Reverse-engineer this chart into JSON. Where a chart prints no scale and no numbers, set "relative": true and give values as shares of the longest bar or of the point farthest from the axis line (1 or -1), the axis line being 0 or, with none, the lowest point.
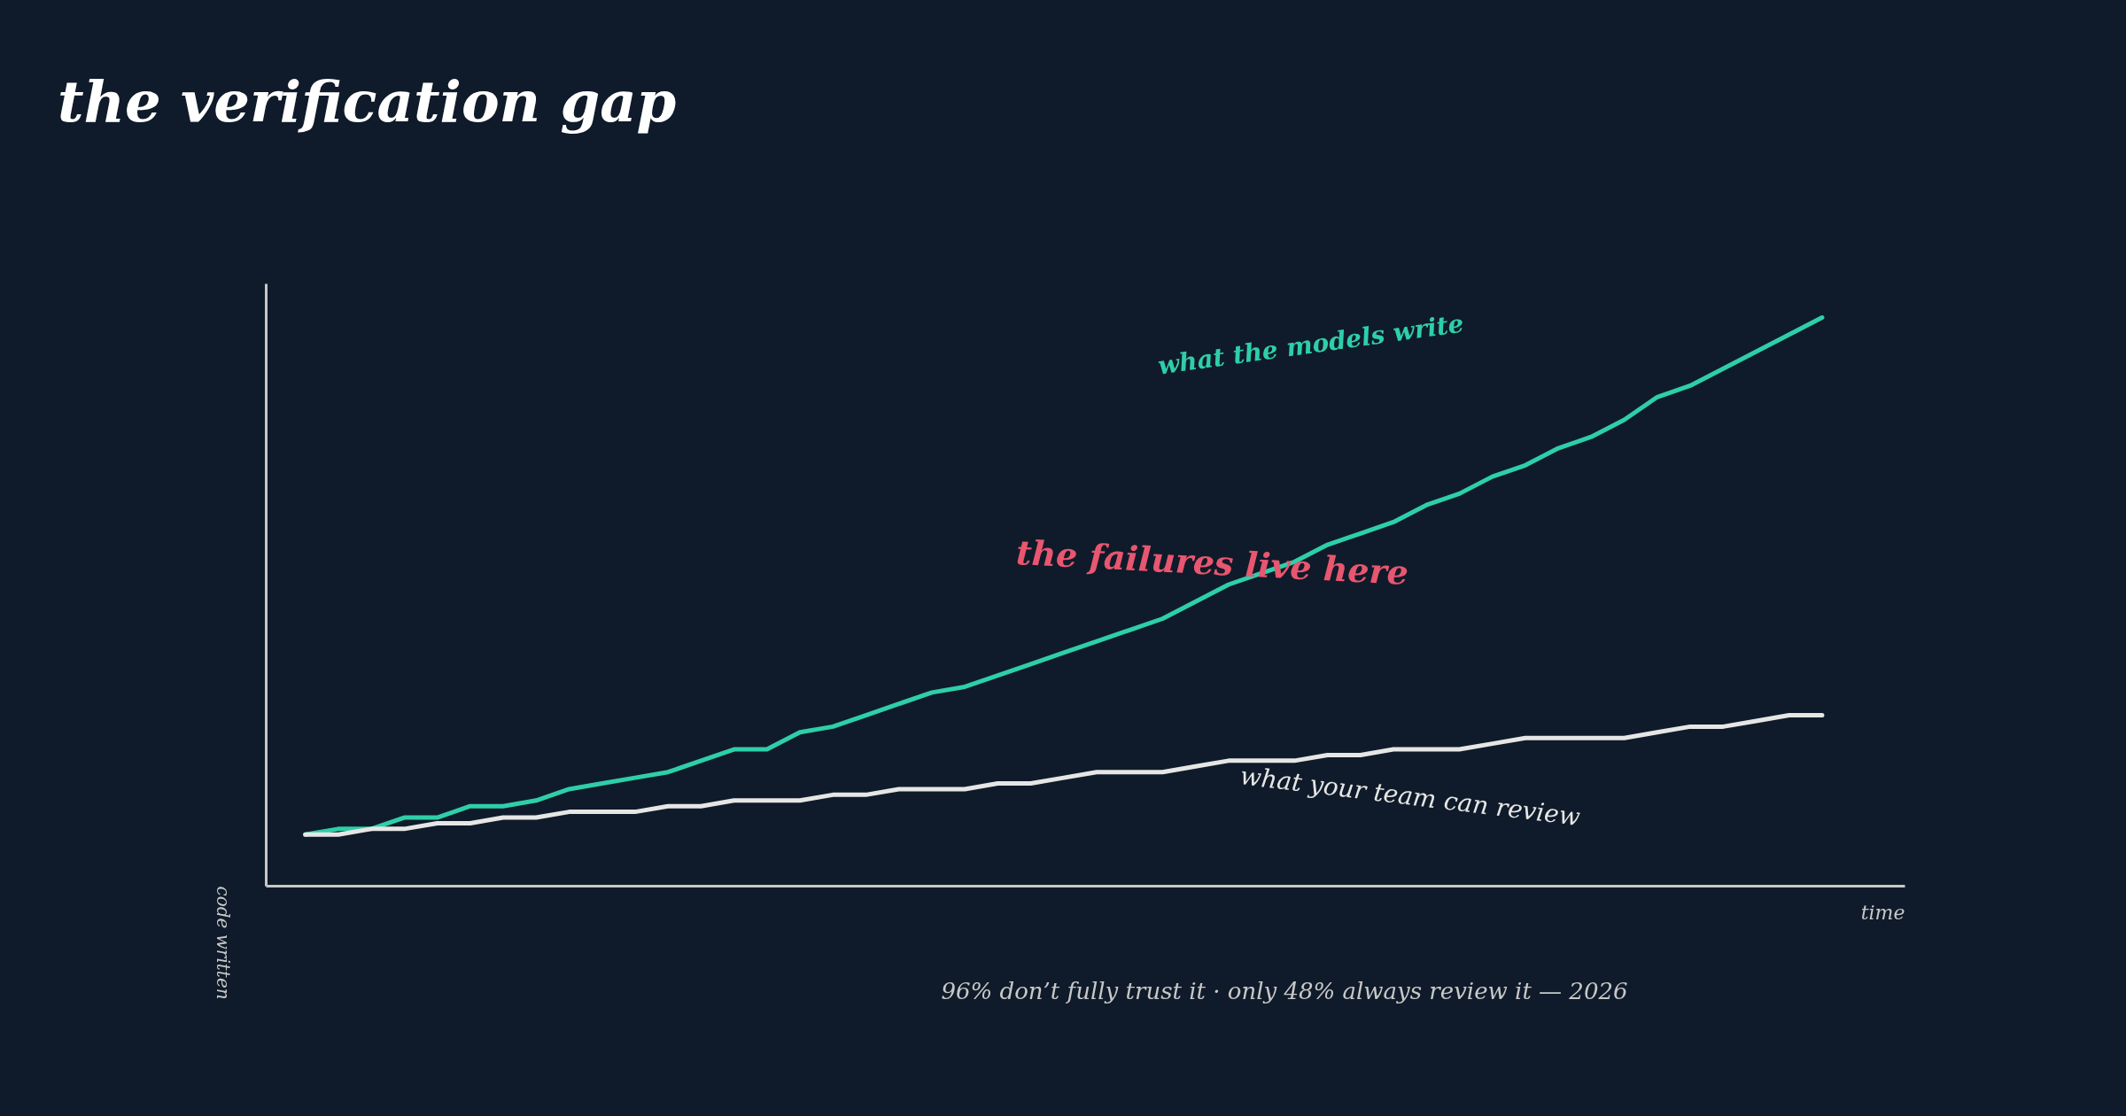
{
  "chart_data": {
    "type": "line",
    "title": "the verification gap",
    "xlabel": "time",
    "ylabel": "code written",
    "relative": true,
    "grid": false,
    "line_style": "solid",
    "marker": "none",
    "categories": [
      null,
      null,
      null,
      null,
      null,
      null,
      null,
      null,
      null,
      null,
      null,
      null,
      null,
      null,
      null,
      null,
      null,
      null,
      null,
      null,
      null,
      null,
      null,
      null,
      null,
      null,
      null,
      null,
      null,
      null,
      null,
      null,
      null,
      null,
      null,
      null,
      null,
      null,
      null,
      null,
      null,
      null,
      null,
      null,
      null,
      null,
      null
    ],
    "series": [
      {
        "name": "what the models write",
        "color": "#2ecfa8",
        "values": [
          0.09,
          0.1,
          0.1,
          0.12,
          0.12,
          0.14,
          0.14,
          0.15,
          0.17,
          0.18,
          0.19,
          0.2,
          0.22,
          0.24,
          0.24,
          0.27,
          0.28,
          0.3,
          0.32,
          0.34,
          0.35,
          0.37,
          0.39,
          0.41,
          0.43,
          0.45,
          0.47,
          0.5,
          0.53,
          0.55,
          0.57,
          0.6,
          0.62,
          0.64,
          0.67,
          0.69,
          0.72,
          0.74,
          0.77,
          0.79,
          0.82,
          0.86,
          0.88,
          0.91,
          0.94,
          0.97,
          1
        ]
      },
      {
        "name": "what your team can review",
        "color": "#e6e6e6",
        "values": [
          0.09,
          0.09,
          0.1,
          0.1,
          0.11,
          0.11,
          0.12,
          0.12,
          0.13,
          0.13,
          0.13,
          0.14,
          0.14,
          0.15,
          0.15,
          0.15,
          0.16,
          0.16,
          0.17,
          0.17,
          0.17,
          0.18,
          0.18,
          0.19,
          0.2,
          0.2,
          0.2,
          0.21,
          0.22,
          0.22,
          0.22,
          0.23,
          0.23,
          0.24,
          0.24,
          0.24,
          0.25,
          0.26,
          0.26,
          0.26,
          0.26,
          0.27,
          0.28,
          0.28,
          0.29,
          0.3,
          0.3
        ]
      }
    ],
    "annotations": [
      "the failures live here",
      "96% don’t fully trust it · only 48% always review it — 2026"
    ]
  }
}
